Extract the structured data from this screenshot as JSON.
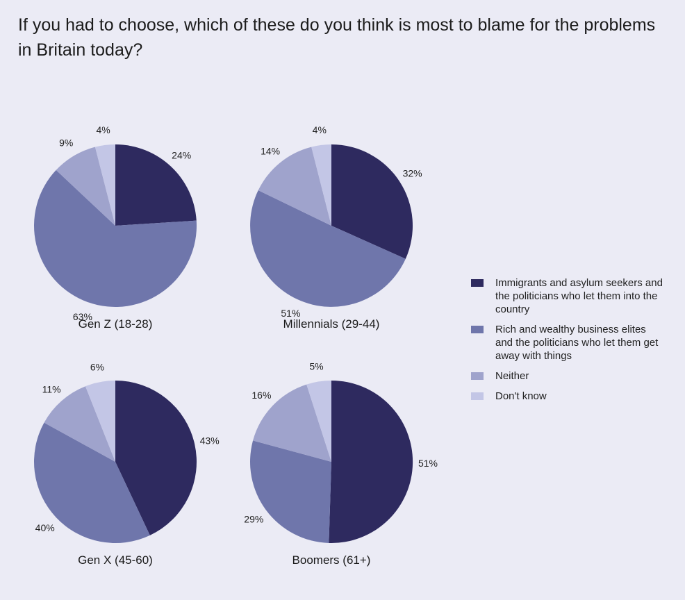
{
  "title": "If you had to choose, which of these do you think is most to blame for the problems in Britain today?",
  "colors": {
    "immigrants": "#2e2a5f",
    "rich": "#6f76ab",
    "neither": "#9fa3cc",
    "dont_know": "#c3c6e6"
  },
  "legend": [
    {
      "key": "immigrants",
      "label": "Immigrants and asylum seekers and the politicians who let them into the country"
    },
    {
      "key": "rich",
      "label": "Rich and wealthy business elites and the politicians who let them get away with things"
    },
    {
      "key": "neither",
      "label": "Neither"
    },
    {
      "key": "dont_know",
      "label": "Don't know"
    }
  ],
  "chart_data": [
    {
      "type": "pie",
      "title": "Gen Z (18-28)",
      "categories": [
        "Immigrants and asylum seekers and the politicians who let them into the country",
        "Rich and wealthy business elites and the politicians who let them get away with things",
        "Neither",
        "Don't know"
      ],
      "values": [
        24,
        63,
        9,
        4
      ],
      "labels": [
        "24%",
        "63%",
        "9%",
        "4%"
      ]
    },
    {
      "type": "pie",
      "title": "Millennials (29-44)",
      "categories": [
        "Immigrants and asylum seekers and the politicians who let them into the country",
        "Rich and wealthy business elites and the politicians who let them get away with things",
        "Neither",
        "Don't know"
      ],
      "values": [
        32,
        51,
        14,
        4
      ],
      "labels": [
        "32%",
        "51%",
        "14%",
        "4%"
      ]
    },
    {
      "type": "pie",
      "title": "Gen X (45-60)",
      "categories": [
        "Immigrants and asylum seekers and the politicians who let them into the country",
        "Rich and wealthy business elites and the politicians who let them get away with things",
        "Neither",
        "Don't know"
      ],
      "values": [
        43,
        40,
        11,
        6
      ],
      "labels": [
        "43%",
        "40%",
        "11%",
        "6%"
      ]
    },
    {
      "type": "pie",
      "title": "Boomers (61+)",
      "categories": [
        "Immigrants and asylum seekers and the politicians who let them into the country",
        "Rich and wealthy business elites and the politicians who let them get away with things",
        "Neither",
        "Don't know"
      ],
      "values": [
        51,
        29,
        16,
        5
      ],
      "labels": [
        "51%",
        "29%",
        "16%",
        "5%"
      ]
    }
  ]
}
